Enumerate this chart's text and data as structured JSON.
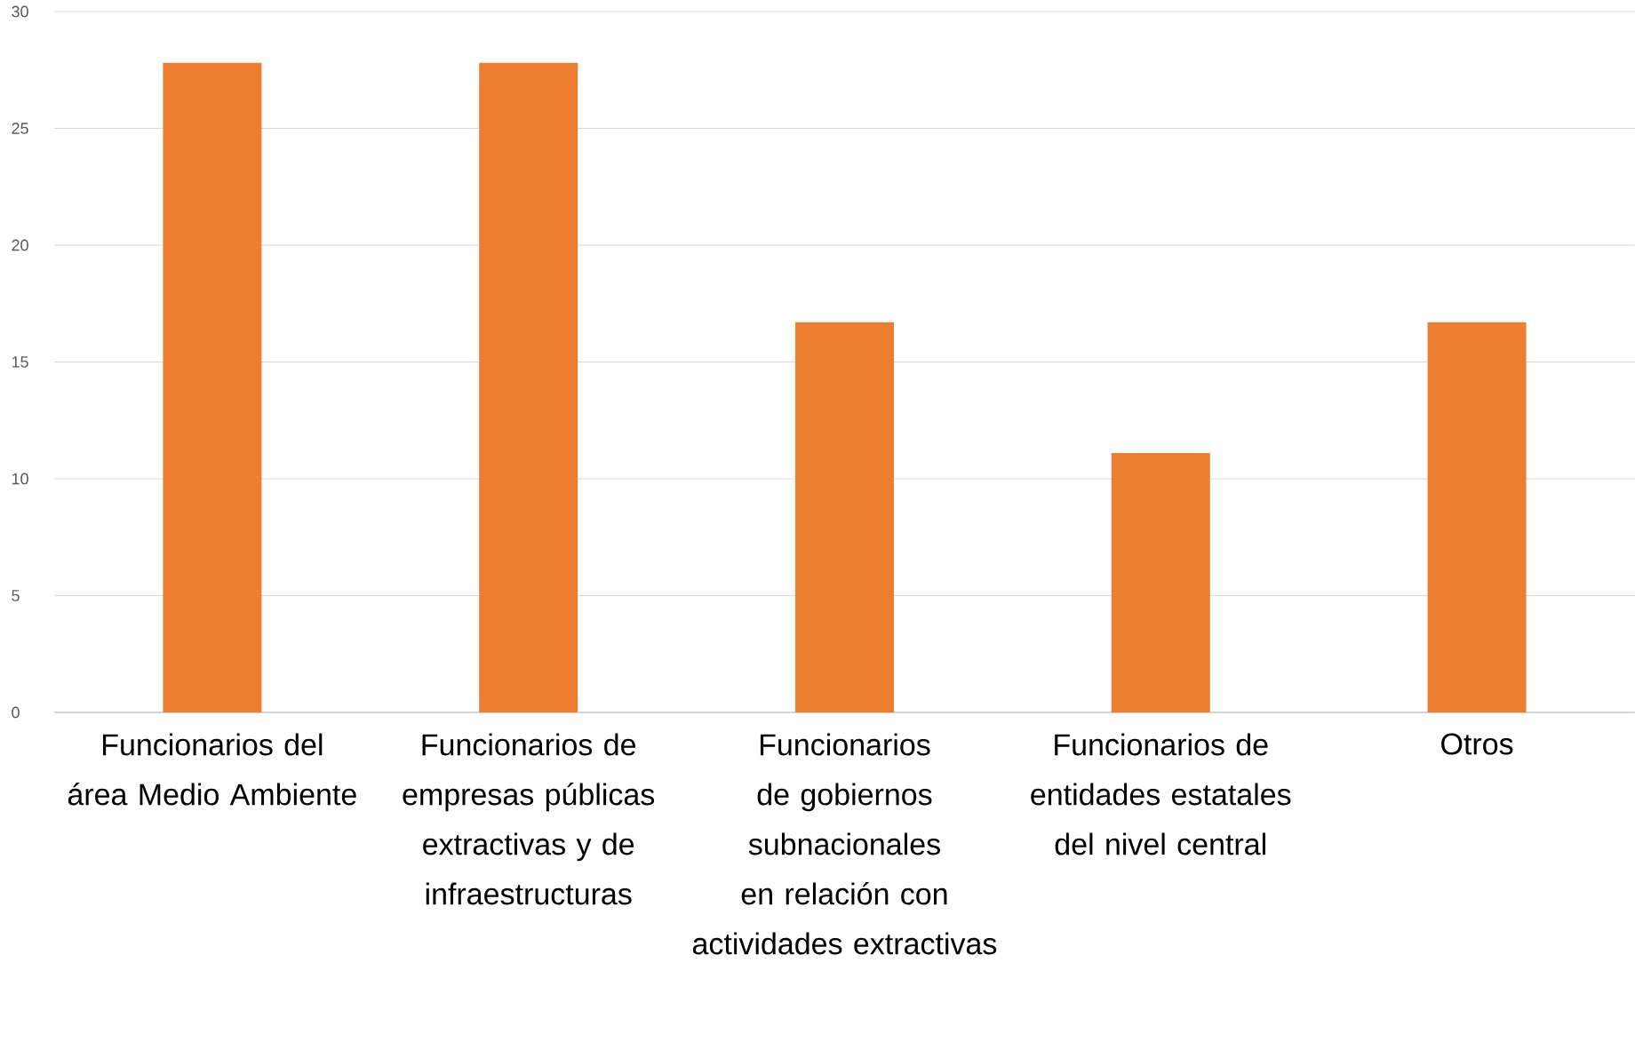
{
  "chart_data": {
    "type": "bar",
    "categories": [
      "Funcionarios del área Medio Ambiente",
      "Funcionarios de empresas públicas extractivas y de infraestructuras",
      "Funcionarios de gobiernos subnacionales en relación con actividades extractivas",
      "Funcionarios de entidades estatales del nivel central",
      "Otros"
    ],
    "values": [
      27.8,
      27.8,
      16.7,
      11.1,
      16.7
    ],
    "color": "#ed7d31",
    "ylim": [
      0,
      30
    ],
    "yticks": [
      0,
      5,
      10,
      15,
      20,
      25,
      30
    ],
    "grid": "y"
  }
}
